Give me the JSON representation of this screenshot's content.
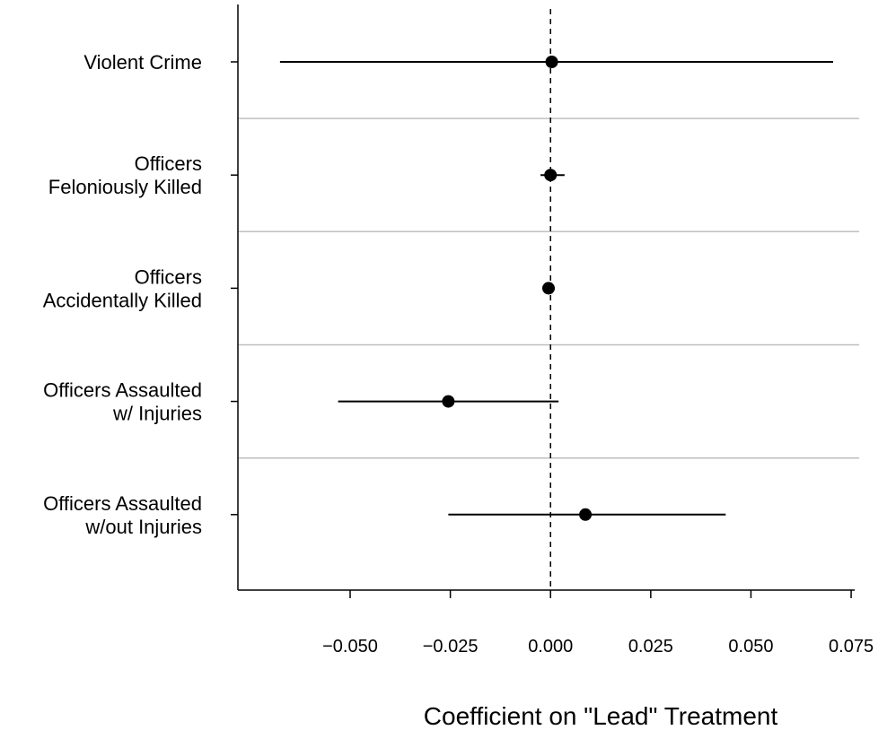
{
  "chart_data": {
    "type": "scatter",
    "subtype": "coefficient-plot",
    "title": "",
    "xlabel": "Coefficient on \"Lead\" Treatment",
    "ylabel": "",
    "xlim": [
      -0.078,
      0.077
    ],
    "x_ticks": [
      -0.05,
      -0.025,
      0.0,
      0.025,
      0.05,
      0.075
    ],
    "x_tick_labels": [
      "−0.050",
      "−0.025",
      "0.000",
      "0.025",
      "0.050",
      "0.075"
    ],
    "reference_line": {
      "x": 0.0,
      "style": "dashed"
    },
    "grid": "horizontal separators between rows",
    "categories": [
      [
        "Violent Crime"
      ],
      [
        "Officers",
        "Feloniously Killed"
      ],
      [
        "Officers",
        "Accidentally Killed"
      ],
      [
        "Officers Assaulted",
        "w/ Injuries"
      ],
      [
        "Officers Assaulted",
        "w/out Injuries"
      ]
    ],
    "estimates": [
      0.0003,
      0.0,
      -0.0005,
      -0.0255,
      0.0087
    ],
    "ci_low": [
      -0.0675,
      -0.0025,
      null,
      -0.053,
      -0.0255
    ],
    "ci_high": [
      0.0705,
      0.0035,
      null,
      0.002,
      0.0437
    ]
  }
}
